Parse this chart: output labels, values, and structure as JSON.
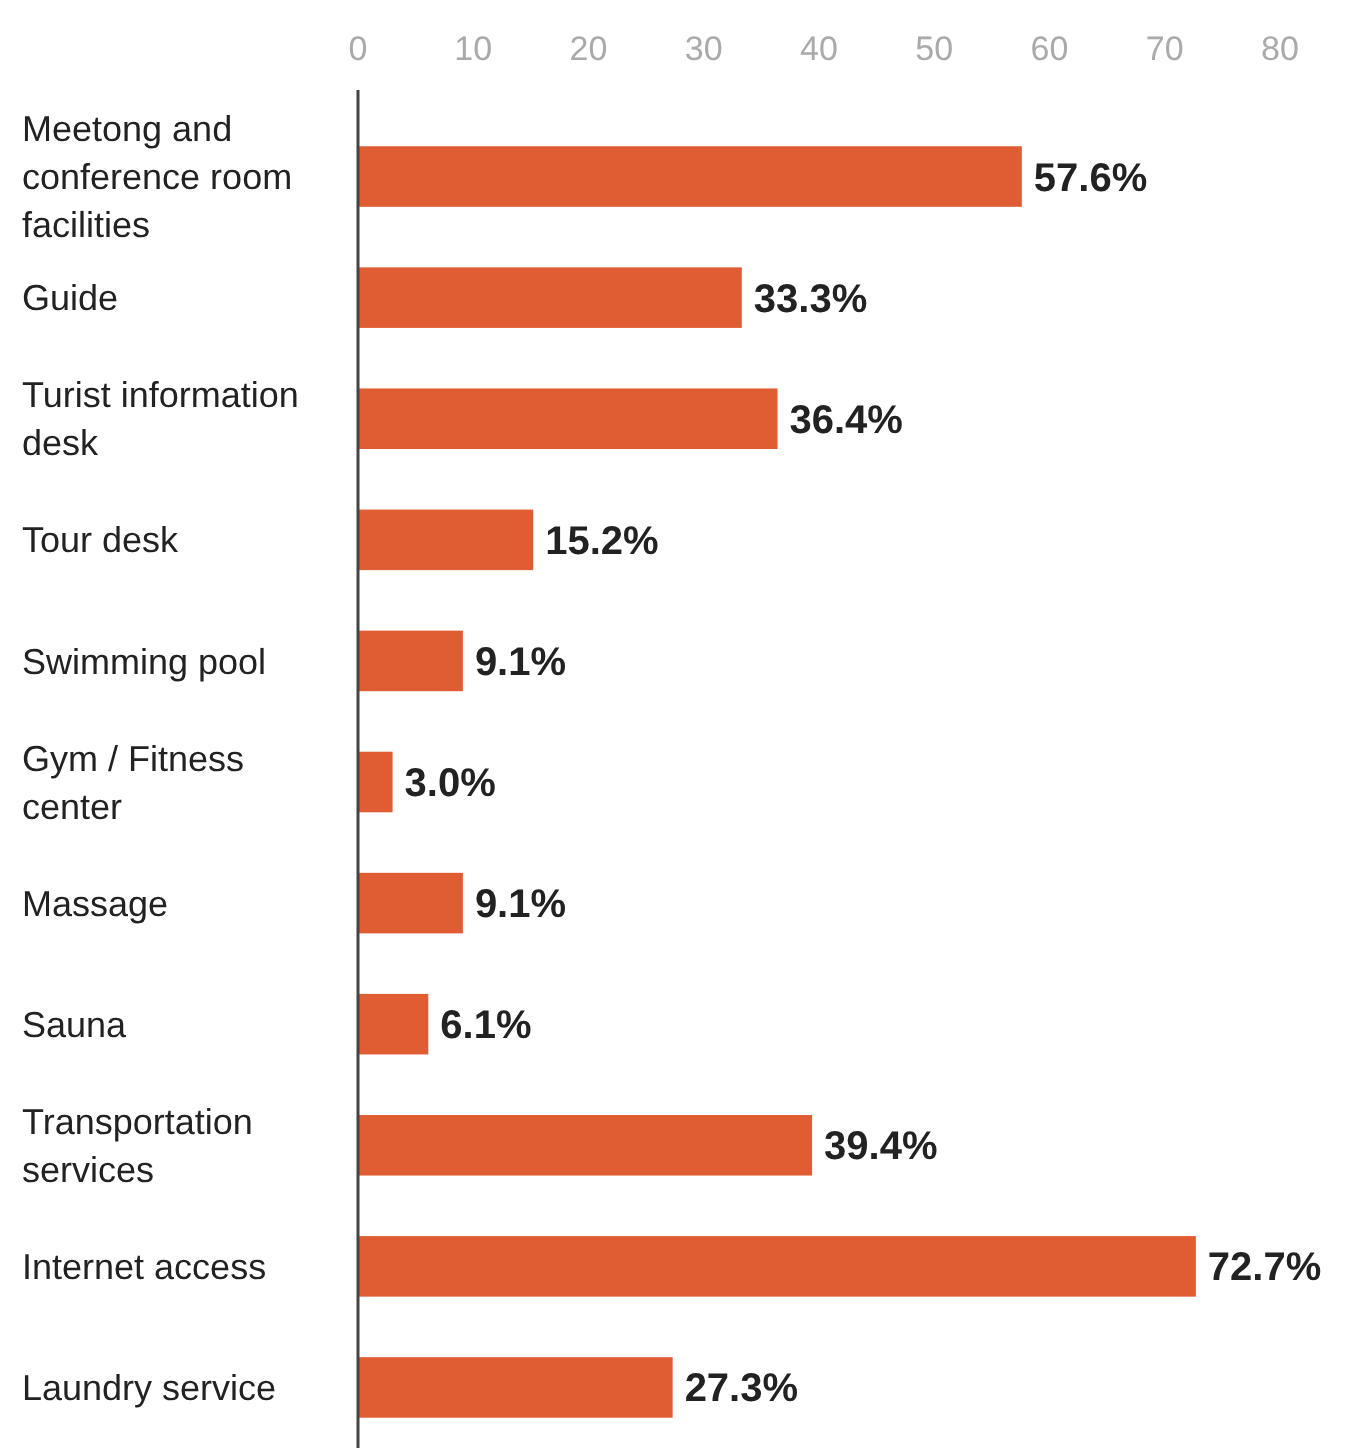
{
  "chart_data": {
    "type": "bar",
    "orientation": "horizontal",
    "categories": [
      "Meetong and conference room facilities",
      "Guide",
      "Turist information desk",
      "Tour desk",
      "Swimming pool",
      "Gym / Fitness center",
      "Massage",
      "Sauna",
      "Transportation services",
      "Internet access",
      "Laundry service"
    ],
    "values": [
      57.6,
      33.3,
      36.4,
      15.2,
      9.1,
      3.0,
      9.1,
      6.1,
      39.4,
      72.7,
      27.3
    ],
    "value_labels": [
      "57.6%",
      "33.3%",
      "36.4%",
      "15.2%",
      "9.1%",
      "3.0%",
      "9.1%",
      "6.1%",
      "39.4%",
      "72.7%",
      "27.3%"
    ],
    "color": "#e05c33",
    "xlim": [
      0,
      80
    ],
    "xticks": [
      0,
      10,
      20,
      30,
      40,
      50,
      60,
      70,
      80
    ],
    "grid": false
  }
}
